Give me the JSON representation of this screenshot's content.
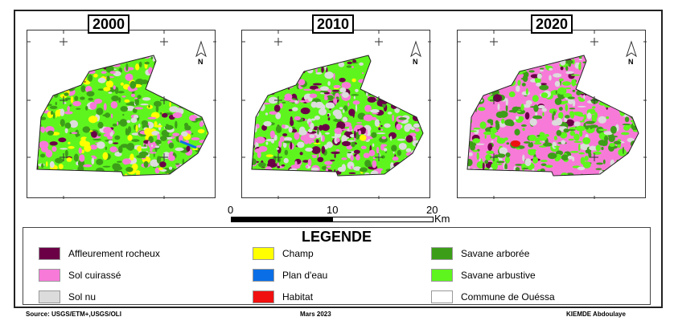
{
  "maps": [
    {
      "year": "2000"
    },
    {
      "year": "2010"
    },
    {
      "year": "2020"
    }
  ],
  "north_arrow": {
    "label": "N"
  },
  "scale_bar": {
    "ticks": [
      "0",
      "10",
      "20"
    ],
    "unit": "Km"
  },
  "legend": {
    "title": "LEGENDE",
    "items": [
      {
        "label": "Affleurement rocheux",
        "color": "#6b0047"
      },
      {
        "label": "Sol cuirassé",
        "color": "#f77ad8"
      },
      {
        "label": "Sol nu",
        "color": "#dcdcdc"
      },
      {
        "label": "Champ",
        "color": "#ffff00"
      },
      {
        "label": "Plan d'eau",
        "color": "#0a6fe6"
      },
      {
        "label": "Habitat",
        "color": "#f01010"
      },
      {
        "label": "Savane arborée",
        "color": "#3c9e18"
      },
      {
        "label": "Savane arbustive",
        "color": "#5ef51e"
      },
      {
        "label": "Commune de Ouéssa",
        "color": "#ffffff"
      }
    ]
  },
  "footer": {
    "source": "Source: USGS/ETM+,USGS/OLI",
    "date": "Mars 2023",
    "author": "KIEMDE Abdoulaye"
  }
}
